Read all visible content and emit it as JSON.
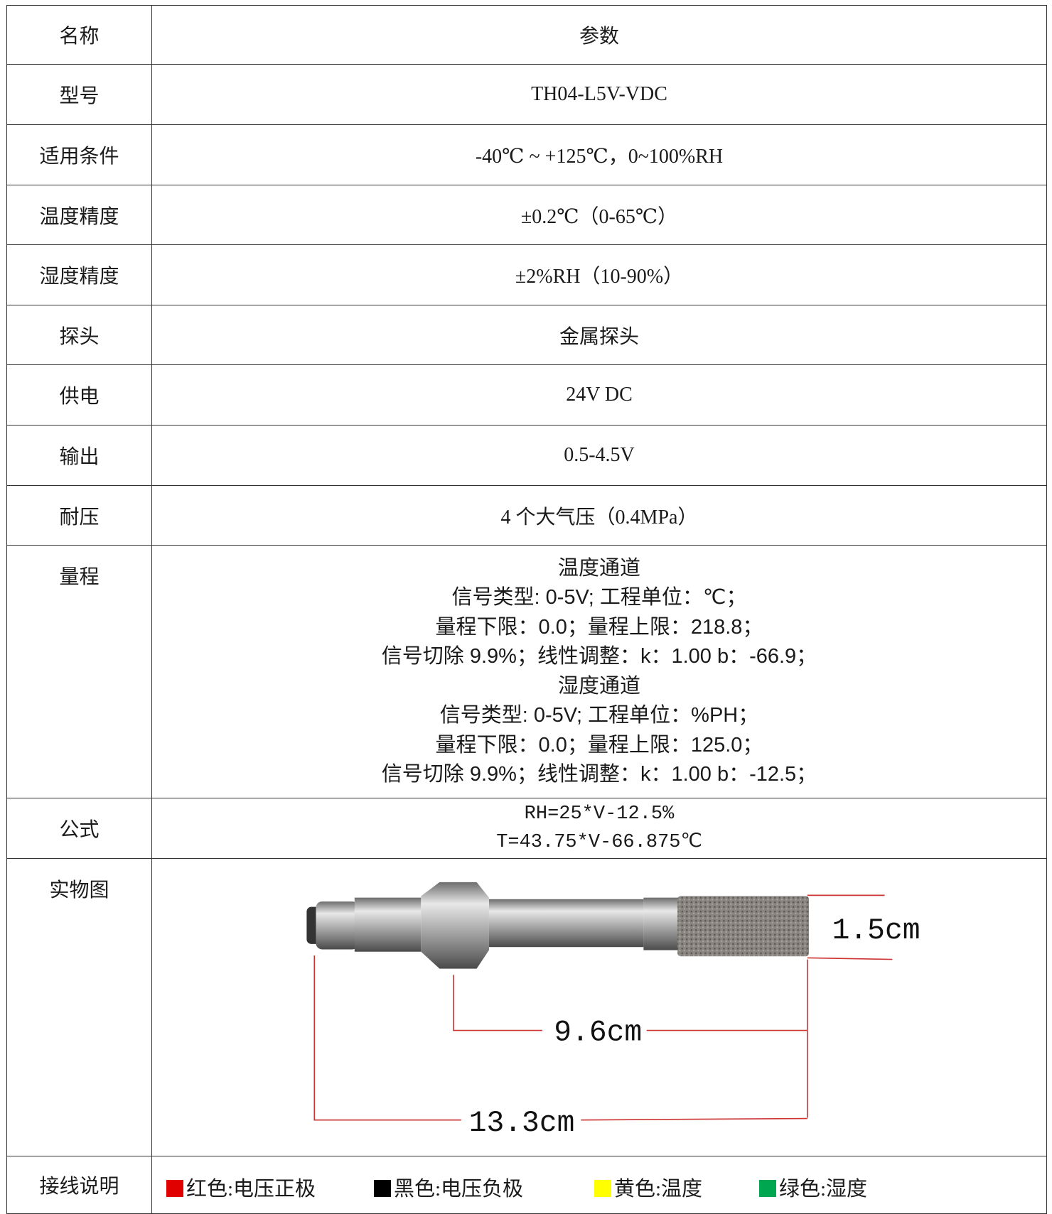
{
  "table": {
    "header": [
      "名称",
      "参数"
    ],
    "rows": [
      {
        "name": "型号",
        "value": [
          "TH04-L5V-VDC"
        ]
      },
      {
        "name": "适用条件",
        "value": [
          "-40℃ ~ +125℃，0~100%RH"
        ]
      },
      {
        "name": "温度精度",
        "value": [
          "±0.2℃（0-65℃）"
        ]
      },
      {
        "name": "湿度精度",
        "value": [
          "±2%RH（10-90%）"
        ]
      },
      {
        "name": "探头",
        "value": [
          "金属探头"
        ]
      },
      {
        "name": "供电",
        "value": [
          "24V DC"
        ]
      },
      {
        "name": "输出",
        "value": [
          "0.5-4.5V"
        ]
      },
      {
        "name": "耐压",
        "value": [
          "4 个大气压（0.4MPa）"
        ]
      },
      {
        "name": "量程",
        "value": [
          "温度通道",
          "信号类型: 0-5V; 工程单位：℃；",
          "量程下限：0.0；量程上限：218.8；",
          "信号切除 9.9%；线性调整：k：1.00 b：-66.9；",
          "湿度通道",
          "信号类型: 0-5V; 工程单位：%PH；",
          "量程下限：0.0；量程上限：125.0；",
          "信号切除 9.9%；线性调整：k：1.00 b：-12.5；"
        ]
      },
      {
        "name": "公式",
        "value": [
          "RH=25*V-12.5%",
          "T=43.75*V-66.875℃"
        ]
      }
    ],
    "picture": {
      "name": "实物图",
      "dimensions": [
        "1.5cm",
        "9.6cm",
        "13.3cm"
      ]
    },
    "wiring": {
      "name": "接线说明",
      "items": [
        "红色:电压正极",
        "黑色:电压负极",
        "黄色:温度",
        "绿色:湿度"
      ]
    }
  }
}
